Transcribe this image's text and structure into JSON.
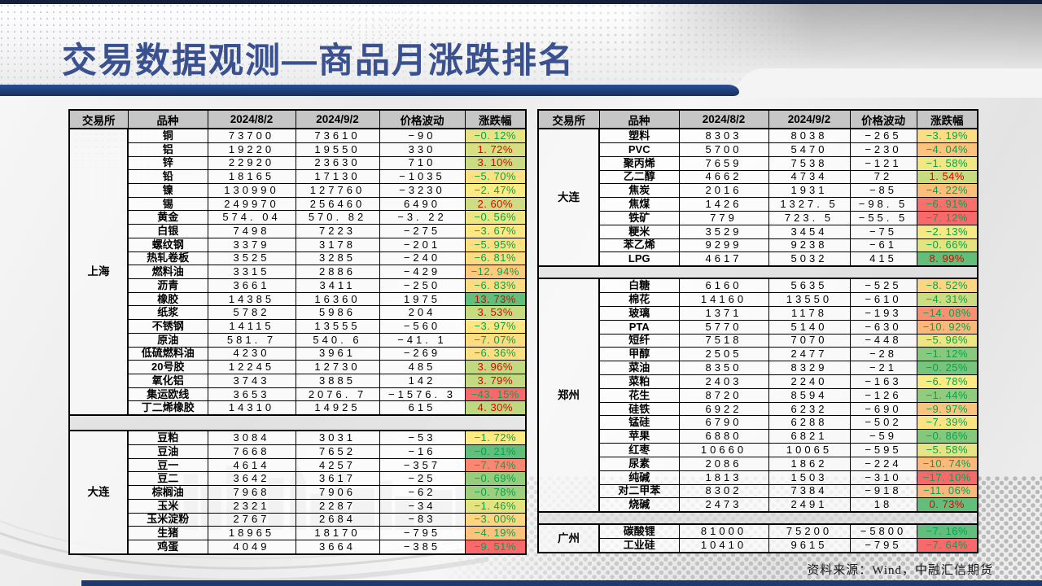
{
  "title": "交易数据观测—商品月涨跌排名",
  "source_note": "资料来源：Wind，中融汇信期货",
  "columns": [
    "交易所",
    "品种",
    "2024/8/2",
    "2024/9/2",
    "价格波动",
    "涨跌幅"
  ],
  "colors": {
    "accent_bar": "#1b3a75",
    "scale_low": "#F8696B",
    "scale_mid": "#FFEB84",
    "scale_high": "#63BE7B",
    "up_text": "#e60000",
    "down_text": "#00a651",
    "header_bg": "#c6c6c6"
  },
  "left_table": {
    "sections": [
      {
        "exchange": "上海",
        "rows": [
          {
            "name": "铜",
            "p1": 73700,
            "p2": 73610,
            "chg": -90,
            "pct": -0.12
          },
          {
            "name": "铝",
            "p1": 19220,
            "p2": 19550,
            "chg": 330,
            "pct": 1.72
          },
          {
            "name": "锌",
            "p1": 22920,
            "p2": 23630,
            "chg": 710,
            "pct": 3.1
          },
          {
            "name": "铅",
            "p1": 18165,
            "p2": 17130,
            "chg": -1035,
            "pct": -5.7
          },
          {
            "name": "镍",
            "p1": 130990,
            "p2": 127760,
            "chg": -3230,
            "pct": -2.47
          },
          {
            "name": "锡",
            "p1": 249970,
            "p2": 256460,
            "chg": 6490,
            "pct": 2.6
          },
          {
            "name": "黄金",
            "p1": 574.04,
            "p2": 570.82,
            "chg": -3.22,
            "pct": -0.56
          },
          {
            "name": "白银",
            "p1": 7498,
            "p2": 7223,
            "chg": -275,
            "pct": -3.67
          },
          {
            "name": "螺纹钢",
            "p1": 3379,
            "p2": 3178,
            "chg": -201,
            "pct": -5.95
          },
          {
            "name": "热轧卷板",
            "p1": 3525,
            "p2": 3285,
            "chg": -240,
            "pct": -6.81
          },
          {
            "name": "燃料油",
            "p1": 3315,
            "p2": 2886,
            "chg": -429,
            "pct": -12.94
          },
          {
            "name": "沥青",
            "p1": 3661,
            "p2": 3411,
            "chg": -250,
            "pct": -6.83
          },
          {
            "name": "橡胶",
            "p1": 14385,
            "p2": 16360,
            "chg": 1975,
            "pct": 13.73
          },
          {
            "name": "纸浆",
            "p1": 5782,
            "p2": 5986,
            "chg": 204,
            "pct": 3.53
          },
          {
            "name": "不锈钢",
            "p1": 14115,
            "p2": 13555,
            "chg": -560,
            "pct": -3.97
          },
          {
            "name": "原油",
            "p1": 581.7,
            "p2": 540.6,
            "chg": -41.1,
            "pct": -7.07
          },
          {
            "name": "低硫燃料油",
            "p1": 4230,
            "p2": 3961,
            "chg": -269,
            "pct": -6.36
          },
          {
            "name": "20号胶",
            "p1": 12245,
            "p2": 12730,
            "chg": 485,
            "pct": 3.96
          },
          {
            "name": "氧化铝",
            "p1": 3743,
            "p2": 3885,
            "chg": 142,
            "pct": 3.79
          },
          {
            "name": "集运欧线",
            "p1": 3653,
            "p2": 2076.7,
            "chg": -1576.3,
            "pct": -43.15
          },
          {
            "name": "丁二烯橡胶",
            "p1": 14310,
            "p2": 14925,
            "chg": 615,
            "pct": 4.3
          }
        ]
      },
      {
        "exchange": "大连",
        "rows": [
          {
            "name": "豆粕",
            "p1": 3084,
            "p2": 3031,
            "chg": -53,
            "pct": -1.72
          },
          {
            "name": "豆油",
            "p1": 7668,
            "p2": 7652,
            "chg": -16,
            "pct": -0.21
          },
          {
            "name": "豆一",
            "p1": 4614,
            "p2": 4257,
            "chg": -357,
            "pct": -7.74
          },
          {
            "name": "豆二",
            "p1": 3642,
            "p2": 3617,
            "chg": -25,
            "pct": -0.69
          },
          {
            "name": "棕榈油",
            "p1": 7968,
            "p2": 7906,
            "chg": -62,
            "pct": -0.78
          },
          {
            "name": "玉米",
            "p1": 2321,
            "p2": 2287,
            "chg": -34,
            "pct": -1.46
          },
          {
            "name": "玉米淀粉",
            "p1": 2767,
            "p2": 2684,
            "chg": -83,
            "pct": -3.0
          },
          {
            "name": "生猪",
            "p1": 18965,
            "p2": 18170,
            "chg": -795,
            "pct": -4.19
          },
          {
            "name": "鸡蛋",
            "p1": 4049,
            "p2": 3664,
            "chg": -385,
            "pct": -9.51
          }
        ]
      }
    ]
  },
  "right_table": {
    "sections": [
      {
        "exchange": "大连",
        "rows": [
          {
            "name": "塑料",
            "p1": 8303,
            "p2": 8038,
            "chg": -265,
            "pct": -3.19
          },
          {
            "name": "PVC",
            "p1": 5700,
            "p2": 5470,
            "chg": -230,
            "pct": -4.04
          },
          {
            "name": "聚丙烯",
            "p1": 7659,
            "p2": 7538,
            "chg": -121,
            "pct": -1.58
          },
          {
            "name": "乙二醇",
            "p1": 4662,
            "p2": 4734,
            "chg": 72,
            "pct": 1.54
          },
          {
            "name": "焦炭",
            "p1": 2016,
            "p2": 1931,
            "chg": -85,
            "pct": -4.22
          },
          {
            "name": "焦煤",
            "p1": 1426,
            "p2": 1327.5,
            "chg": -98.5,
            "pct": -6.91
          },
          {
            "name": "铁矿",
            "p1": 779,
            "p2": 723.5,
            "chg": -55.5,
            "pct": -7.12
          },
          {
            "name": "粳米",
            "p1": 3529,
            "p2": 3454,
            "chg": -75,
            "pct": -2.13
          },
          {
            "name": "苯乙烯",
            "p1": 9299,
            "p2": 9238,
            "chg": -61,
            "pct": -0.66
          },
          {
            "name": "LPG",
            "p1": 4617,
            "p2": 5032,
            "chg": 415,
            "pct": 8.99
          }
        ]
      },
      {
        "exchange": "郑州",
        "rows": [
          {
            "name": "白糖",
            "p1": 6160,
            "p2": 5635,
            "chg": -525,
            "pct": -8.52
          },
          {
            "name": "棉花",
            "p1": 14160,
            "p2": 13550,
            "chg": -610,
            "pct": -4.31
          },
          {
            "name": "玻璃",
            "p1": 1371,
            "p2": 1178,
            "chg": -193,
            "pct": -14.08
          },
          {
            "name": "PTA",
            "p1": 5770,
            "p2": 5140,
            "chg": -630,
            "pct": -10.92
          },
          {
            "name": "短纤",
            "p1": 7518,
            "p2": 7070,
            "chg": -448,
            "pct": -5.96
          },
          {
            "name": "甲醇",
            "p1": 2505,
            "p2": 2477,
            "chg": -28,
            "pct": -1.12
          },
          {
            "name": "菜油",
            "p1": 8350,
            "p2": 8329,
            "chg": -21,
            "pct": -0.25
          },
          {
            "name": "菜粕",
            "p1": 2403,
            "p2": 2240,
            "chg": -163,
            "pct": -6.78
          },
          {
            "name": "花生",
            "p1": 8720,
            "p2": 8594,
            "chg": -126,
            "pct": -1.44
          },
          {
            "name": "硅铁",
            "p1": 6922,
            "p2": 6232,
            "chg": -690,
            "pct": -9.97
          },
          {
            "name": "锰硅",
            "p1": 6790,
            "p2": 6288,
            "chg": -502,
            "pct": -7.39
          },
          {
            "name": "苹果",
            "p1": 6880,
            "p2": 6821,
            "chg": -59,
            "pct": -0.86
          },
          {
            "name": "红枣",
            "p1": 10660,
            "p2": 10065,
            "chg": -595,
            "pct": -5.58
          },
          {
            "name": "尿素",
            "p1": 2086,
            "p2": 1862,
            "chg": -224,
            "pct": -10.74
          },
          {
            "name": "纯碱",
            "p1": 1813,
            "p2": 1503,
            "chg": -310,
            "pct": -17.1
          },
          {
            "name": "对二甲苯",
            "p1": 8302,
            "p2": 7384,
            "chg": -918,
            "pct": -11.06
          },
          {
            "name": "烧碱",
            "p1": 2473,
            "p2": 2491,
            "chg": 18,
            "pct": 0.73
          }
        ]
      },
      {
        "exchange": "广州",
        "rows": [
          {
            "name": "碳酸锂",
            "p1": 81000,
            "p2": 75200,
            "chg": -5800,
            "pct": -7.16
          },
          {
            "name": "工业硅",
            "p1": 10410,
            "p2": 9615,
            "chg": -795,
            "pct": -7.64
          }
        ]
      }
    ]
  }
}
